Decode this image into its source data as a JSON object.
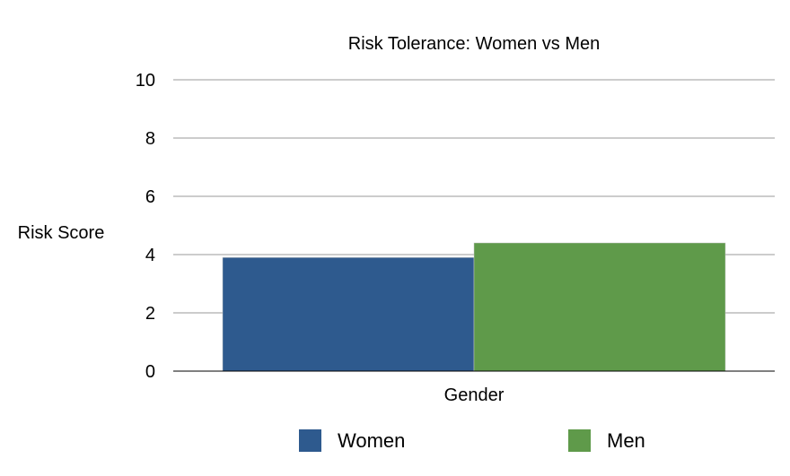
{
  "chart_data": {
    "type": "bar",
    "title": "Risk Tolerance: Women vs Men",
    "xlabel": "Gender",
    "ylabel": "Risk Score",
    "categories": [
      "Gender"
    ],
    "series": [
      {
        "name": "Women",
        "values": [
          3.9
        ],
        "color": "#2e5a8e"
      },
      {
        "name": "Men",
        "values": [
          4.4
        ],
        "color": "#5f9a4a"
      }
    ],
    "ylim": [
      0,
      10
    ],
    "yticks": [
      "0",
      "2",
      "4",
      "6",
      "8",
      "10"
    ],
    "grid": true,
    "legend_position": "bottom"
  }
}
